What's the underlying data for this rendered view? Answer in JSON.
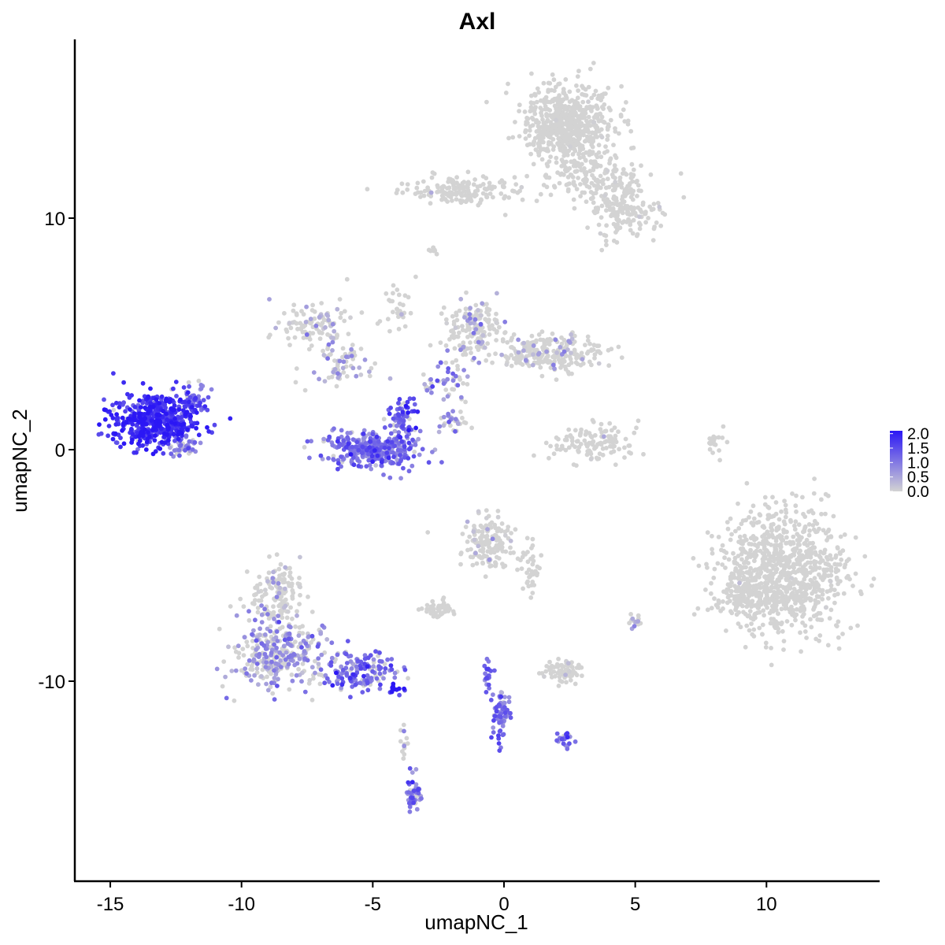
{
  "chart_data": {
    "type": "scatter",
    "title": "Axl",
    "xlabel": "umapNC_1",
    "ylabel": "umapNC_2",
    "xlim": [
      -16.4,
      14.4
    ],
    "ylim": [
      -18.5,
      17.5
    ],
    "xticks": [
      -15,
      -10,
      -5,
      0,
      5,
      10
    ],
    "xtick_labels": [
      "-15",
      "-10",
      "-5",
      "0",
      "5",
      "10"
    ],
    "yticks": [
      -10,
      0,
      10
    ],
    "ytick_labels": [
      "-10",
      "0",
      "10"
    ],
    "grid": false,
    "legend_position": "right",
    "color_scale": {
      "low_color": "#d3d3d3",
      "high_color": "#2b17f5",
      "min": 0.0,
      "max": 2.1,
      "breaks": [
        0.0,
        0.5,
        1.0,
        1.5,
        2.0
      ],
      "break_labels": [
        "0.0",
        "0.5",
        "1.0",
        "1.5",
        "2.0"
      ]
    },
    "clusters": [
      {
        "cx": 2.4,
        "cy": 14.0,
        "sx": 1.1,
        "sy": 1.1,
        "n": 650,
        "expr": 0.0,
        "frac": 0.005
      },
      {
        "cx": 4.4,
        "cy": 11.3,
        "sx": 0.7,
        "sy": 0.7,
        "n": 60,
        "expr": 0.0,
        "frac": 0.02
      },
      {
        "cx": 4.6,
        "cy": 10.2,
        "sx": 0.8,
        "sy": 0.7,
        "n": 140,
        "expr": 0.0,
        "frac": 0.02
      },
      {
        "cx": -1.6,
        "cy": 11.2,
        "sx": 1.2,
        "sy": 0.4,
        "n": 160,
        "expr": 0.0,
        "frac": 0.01
      },
      {
        "cx": 3.2,
        "cy": 11.7,
        "sx": 1.3,
        "sy": 0.5,
        "n": 90,
        "expr": 0.0,
        "frac": 0.02
      },
      {
        "cx": -13.3,
        "cy": 1.3,
        "sx": 1.0,
        "sy": 0.7,
        "n": 520,
        "expr": 1.75,
        "frac": 0.97
      },
      {
        "cx": -12.2,
        "cy": 0.1,
        "sx": 0.4,
        "sy": 0.2,
        "n": 40,
        "expr": 0.8,
        "frac": 0.8
      },
      {
        "cx": -11.7,
        "cy": 2.2,
        "sx": 0.3,
        "sy": 0.4,
        "n": 40,
        "expr": 1.2,
        "frac": 0.9
      },
      {
        "cx": -4.9,
        "cy": 0.0,
        "sx": 1.1,
        "sy": 0.5,
        "n": 330,
        "expr": 1.1,
        "frac": 0.95
      },
      {
        "cx": -3.9,
        "cy": 1.4,
        "sx": 0.3,
        "sy": 0.6,
        "n": 70,
        "expr": 1.3,
        "frac": 0.95
      },
      {
        "cx": -6.2,
        "cy": 3.7,
        "sx": 0.9,
        "sy": 0.5,
        "n": 60,
        "expr": 0.6,
        "frac": 0.5
      },
      {
        "cx": -7.2,
        "cy": 5.3,
        "sx": 0.8,
        "sy": 0.6,
        "n": 110,
        "expr": 0.4,
        "frac": 0.25
      },
      {
        "cx": -4.2,
        "cy": 6.0,
        "sx": 0.4,
        "sy": 1.2,
        "n": 30,
        "expr": 0.0,
        "frac": 0.05
      },
      {
        "cx": -1.2,
        "cy": 5.2,
        "sx": 0.6,
        "sy": 0.8,
        "n": 170,
        "expr": 0.5,
        "frac": 0.2
      },
      {
        "cx": 1.8,
        "cy": 4.2,
        "sx": 1.2,
        "sy": 0.5,
        "n": 240,
        "expr": 0.5,
        "frac": 0.15
      },
      {
        "cx": -2.1,
        "cy": 3.1,
        "sx": 0.5,
        "sy": 0.6,
        "n": 50,
        "expr": 0.8,
        "frac": 0.6
      },
      {
        "cx": -1.9,
        "cy": 1.2,
        "sx": 0.4,
        "sy": 0.4,
        "n": 20,
        "expr": 0.9,
        "frac": 0.6
      },
      {
        "cx": 3.3,
        "cy": 0.3,
        "sx": 0.9,
        "sy": 0.6,
        "n": 120,
        "expr": 0.0,
        "frac": 0.02
      },
      {
        "cx": 8.0,
        "cy": 0.3,
        "sx": 0.2,
        "sy": 0.5,
        "n": 18,
        "expr": 0.0,
        "frac": 0.0
      },
      {
        "cx": 10.6,
        "cy": -5.3,
        "sx": 1.5,
        "sy": 1.7,
        "n": 900,
        "expr": 0.0,
        "frac": 0.003
      },
      {
        "cx": 9.2,
        "cy": -6.3,
        "sx": 0.7,
        "sy": 0.6,
        "n": 120,
        "expr": 0.0,
        "frac": 0.0
      },
      {
        "cx": -8.6,
        "cy": -8.8,
        "sx": 1.1,
        "sy": 0.9,
        "n": 320,
        "expr": 0.7,
        "frac": 0.55
      },
      {
        "cx": -8.7,
        "cy": -6.2,
        "sx": 0.6,
        "sy": 0.8,
        "n": 140,
        "expr": 0.3,
        "frac": 0.2
      },
      {
        "cx": -5.4,
        "cy": -9.6,
        "sx": 0.9,
        "sy": 0.5,
        "n": 150,
        "expr": 1.2,
        "frac": 0.8
      },
      {
        "cx": -4.1,
        "cy": -10.3,
        "sx": 0.2,
        "sy": 0.15,
        "n": 12,
        "expr": 2.1,
        "frac": 1.0
      },
      {
        "cx": -0.6,
        "cy": -4.0,
        "sx": 0.6,
        "sy": 0.7,
        "n": 150,
        "expr": 0.2,
        "frac": 0.1
      },
      {
        "cx": 1.0,
        "cy": -5.0,
        "sx": 0.3,
        "sy": 0.7,
        "n": 40,
        "expr": 0.0,
        "frac": 0.0
      },
      {
        "cx": -2.5,
        "cy": -6.9,
        "sx": 0.4,
        "sy": 0.25,
        "n": 50,
        "expr": 0.0,
        "frac": 0.0
      },
      {
        "cx": 2.3,
        "cy": -9.6,
        "sx": 0.5,
        "sy": 0.25,
        "n": 70,
        "expr": 0.0,
        "frac": 0.05
      },
      {
        "cx": -0.1,
        "cy": -11.3,
        "sx": 0.2,
        "sy": 0.8,
        "n": 70,
        "expr": 1.0,
        "frac": 0.9
      },
      {
        "cx": -0.6,
        "cy": -9.7,
        "sx": 0.1,
        "sy": 0.5,
        "n": 20,
        "expr": 1.2,
        "frac": 0.9
      },
      {
        "cx": 2.3,
        "cy": -12.5,
        "sx": 0.2,
        "sy": 0.2,
        "n": 20,
        "expr": 1.2,
        "frac": 0.9
      },
      {
        "cx": -3.4,
        "cy": -14.9,
        "sx": 0.2,
        "sy": 0.5,
        "n": 50,
        "expr": 1.0,
        "frac": 0.9
      },
      {
        "cx": -3.8,
        "cy": -12.6,
        "sx": 0.1,
        "sy": 0.4,
        "n": 12,
        "expr": 0.3,
        "frac": 0.3
      },
      {
        "cx": 5.0,
        "cy": -7.4,
        "sx": 0.2,
        "sy": 0.2,
        "n": 14,
        "expr": 0.5,
        "frac": 0.5
      },
      {
        "cx": -2.7,
        "cy": 8.6,
        "sx": 0.15,
        "sy": 0.1,
        "n": 8,
        "expr": 0.0,
        "frac": 0.0
      },
      {
        "cx": -1.9,
        "cy": 1.2,
        "sx": 0.3,
        "sy": 0.3,
        "n": 10,
        "expr": 0.0,
        "frac": 0.0
      }
    ]
  }
}
